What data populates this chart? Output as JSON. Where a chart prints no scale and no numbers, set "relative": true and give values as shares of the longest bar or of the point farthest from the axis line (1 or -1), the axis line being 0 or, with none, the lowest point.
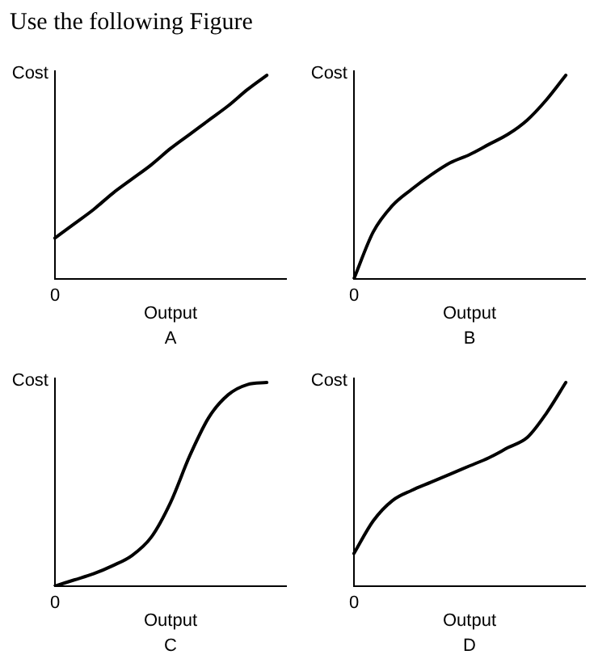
{
  "chart_data": [
    {
      "type": "line",
      "title": "A",
      "xlabel": "Output",
      "ylabel": "Cost",
      "relative": true,
      "annotations": [
        "0",
        "Use the following Figure"
      ],
      "categories": [
        null,
        null,
        null,
        null,
        null,
        null,
        null,
        null,
        null,
        null,
        null,
        null,
        null
      ],
      "series": [
        {
          "color": "#000000",
          "values": [
            0.2,
            0.27,
            0.34,
            0.42,
            0.49,
            0.56,
            0.64,
            0.71,
            0.78,
            0.85,
            0.93,
            1,
            null
          ]
        }
      ],
      "grid": false,
      "legend": false,
      "marker": "none",
      "line_style": "solid"
    },
    {
      "type": "line",
      "title": "B",
      "xlabel": "Output",
      "ylabel": "Cost",
      "relative": true,
      "annotations": [
        "0"
      ],
      "categories": [
        null,
        null,
        null,
        null,
        null,
        null,
        null,
        null,
        null,
        null,
        null,
        null,
        null
      ],
      "series": [
        {
          "color": "#000000",
          "values": [
            0,
            0.23,
            0.36,
            0.44,
            0.51,
            0.57,
            0.61,
            0.66,
            0.71,
            0.78,
            0.88,
            1,
            null
          ]
        }
      ],
      "grid": false,
      "legend": false,
      "marker": "none",
      "line_style": "solid"
    },
    {
      "type": "line",
      "title": "C",
      "xlabel": "Output",
      "ylabel": "Cost",
      "relative": true,
      "annotations": [
        "0"
      ],
      "categories": [
        null,
        null,
        null,
        null,
        null,
        null,
        null,
        null,
        null,
        null,
        null,
        null,
        null
      ],
      "series": [
        {
          "color": "#000000",
          "values": [
            0,
            0.03,
            0.06,
            0.1,
            0.15,
            0.24,
            0.41,
            0.64,
            0.83,
            0.94,
            0.99,
            1,
            null
          ]
        }
      ],
      "grid": false,
      "legend": false,
      "marker": "none",
      "line_style": "solid"
    },
    {
      "type": "line",
      "title": "D",
      "xlabel": "Output",
      "ylabel": "Cost",
      "relative": true,
      "annotations": [
        "0"
      ],
      "categories": [
        null,
        null,
        null,
        null,
        null,
        null,
        null,
        null,
        null,
        null,
        null,
        null,
        null
      ],
      "series": [
        {
          "color": "#000000",
          "values": [
            0.16,
            0.32,
            0.42,
            0.47,
            0.51,
            0.55,
            0.59,
            0.63,
            0.68,
            0.73,
            0.85,
            1,
            null
          ]
        }
      ],
      "grid": false,
      "legend": false,
      "marker": "none",
      "line_style": "solid"
    }
  ]
}
